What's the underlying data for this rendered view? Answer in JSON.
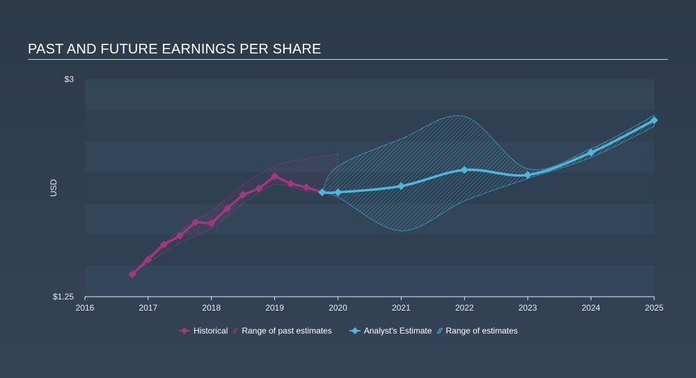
{
  "chart_data": {
    "type": "line",
    "title": "PAST AND FUTURE EARNINGS PER SHARE",
    "ylabel": "USD",
    "ylim": [
      1.25,
      3.0
    ],
    "y_tick_labels": [
      "$3",
      "$1.25"
    ],
    "y_ticks": [
      3.0,
      1.25
    ],
    "xlim": [
      2016,
      2025.0
    ],
    "x_tick_labels": [
      "2016",
      "2017",
      "2018",
      "2019",
      "2020",
      "2021",
      "2022",
      "2023",
      "2024",
      "2025"
    ],
    "x_ticks": [
      2016,
      2017,
      2018,
      2019,
      2020,
      2021,
      2022,
      2023,
      2024,
      2025
    ],
    "grid": "horizontal bands",
    "legend_position": "bottom-center",
    "colors": {
      "historical": "#a6357f",
      "historical_range": "#a6357f",
      "estimate": "#4bb8dc",
      "estimate_range": "#4bb8dc"
    },
    "series": [
      {
        "name": "Historical",
        "x": [
          2016.75,
          2017.0,
          2017.25,
          2017.5,
          2017.75,
          2018.0,
          2018.25,
          2018.5,
          2018.75,
          2019.0,
          2019.25,
          2019.5,
          2019.75
        ],
        "values": [
          1.43,
          1.55,
          1.67,
          1.74,
          1.85,
          1.84,
          1.96,
          2.07,
          2.12,
          2.22,
          2.16,
          2.13,
          2.09
        ]
      },
      {
        "name": "Analyst's Estimate",
        "x": [
          2019.75,
          2020.0,
          2021.0,
          2022.0,
          2023.0,
          2024.0,
          2025.0
        ],
        "values": [
          2.09,
          2.09,
          2.14,
          2.27,
          2.23,
          2.41,
          2.67
        ]
      }
    ],
    "ranges": [
      {
        "name": "Range of past estimates",
        "x": [
          2016.75,
          2017.0,
          2017.5,
          2018.0,
          2018.5,
          2019.0,
          2019.5,
          2020.0
        ],
        "high": [
          1.43,
          1.57,
          1.78,
          1.94,
          2.15,
          2.3,
          2.36,
          2.4
        ],
        "low": [
          1.43,
          1.52,
          1.68,
          1.8,
          2.0,
          2.15,
          2.1,
          2.06
        ]
      },
      {
        "name": "Range of estimates",
        "x": [
          2019.75,
          2020.0,
          2021.0,
          2022.0,
          2023.0,
          2024.0,
          2025.0
        ],
        "high": [
          2.09,
          2.3,
          2.52,
          2.7,
          2.28,
          2.44,
          2.71
        ],
        "low": [
          2.09,
          2.05,
          1.78,
          2.02,
          2.2,
          2.37,
          2.62
        ]
      }
    ]
  },
  "legend": {
    "historical": "Historical",
    "past_range": "Range of past estimates",
    "estimate": "Analyst's Estimate",
    "future_range": "Range of estimates"
  }
}
